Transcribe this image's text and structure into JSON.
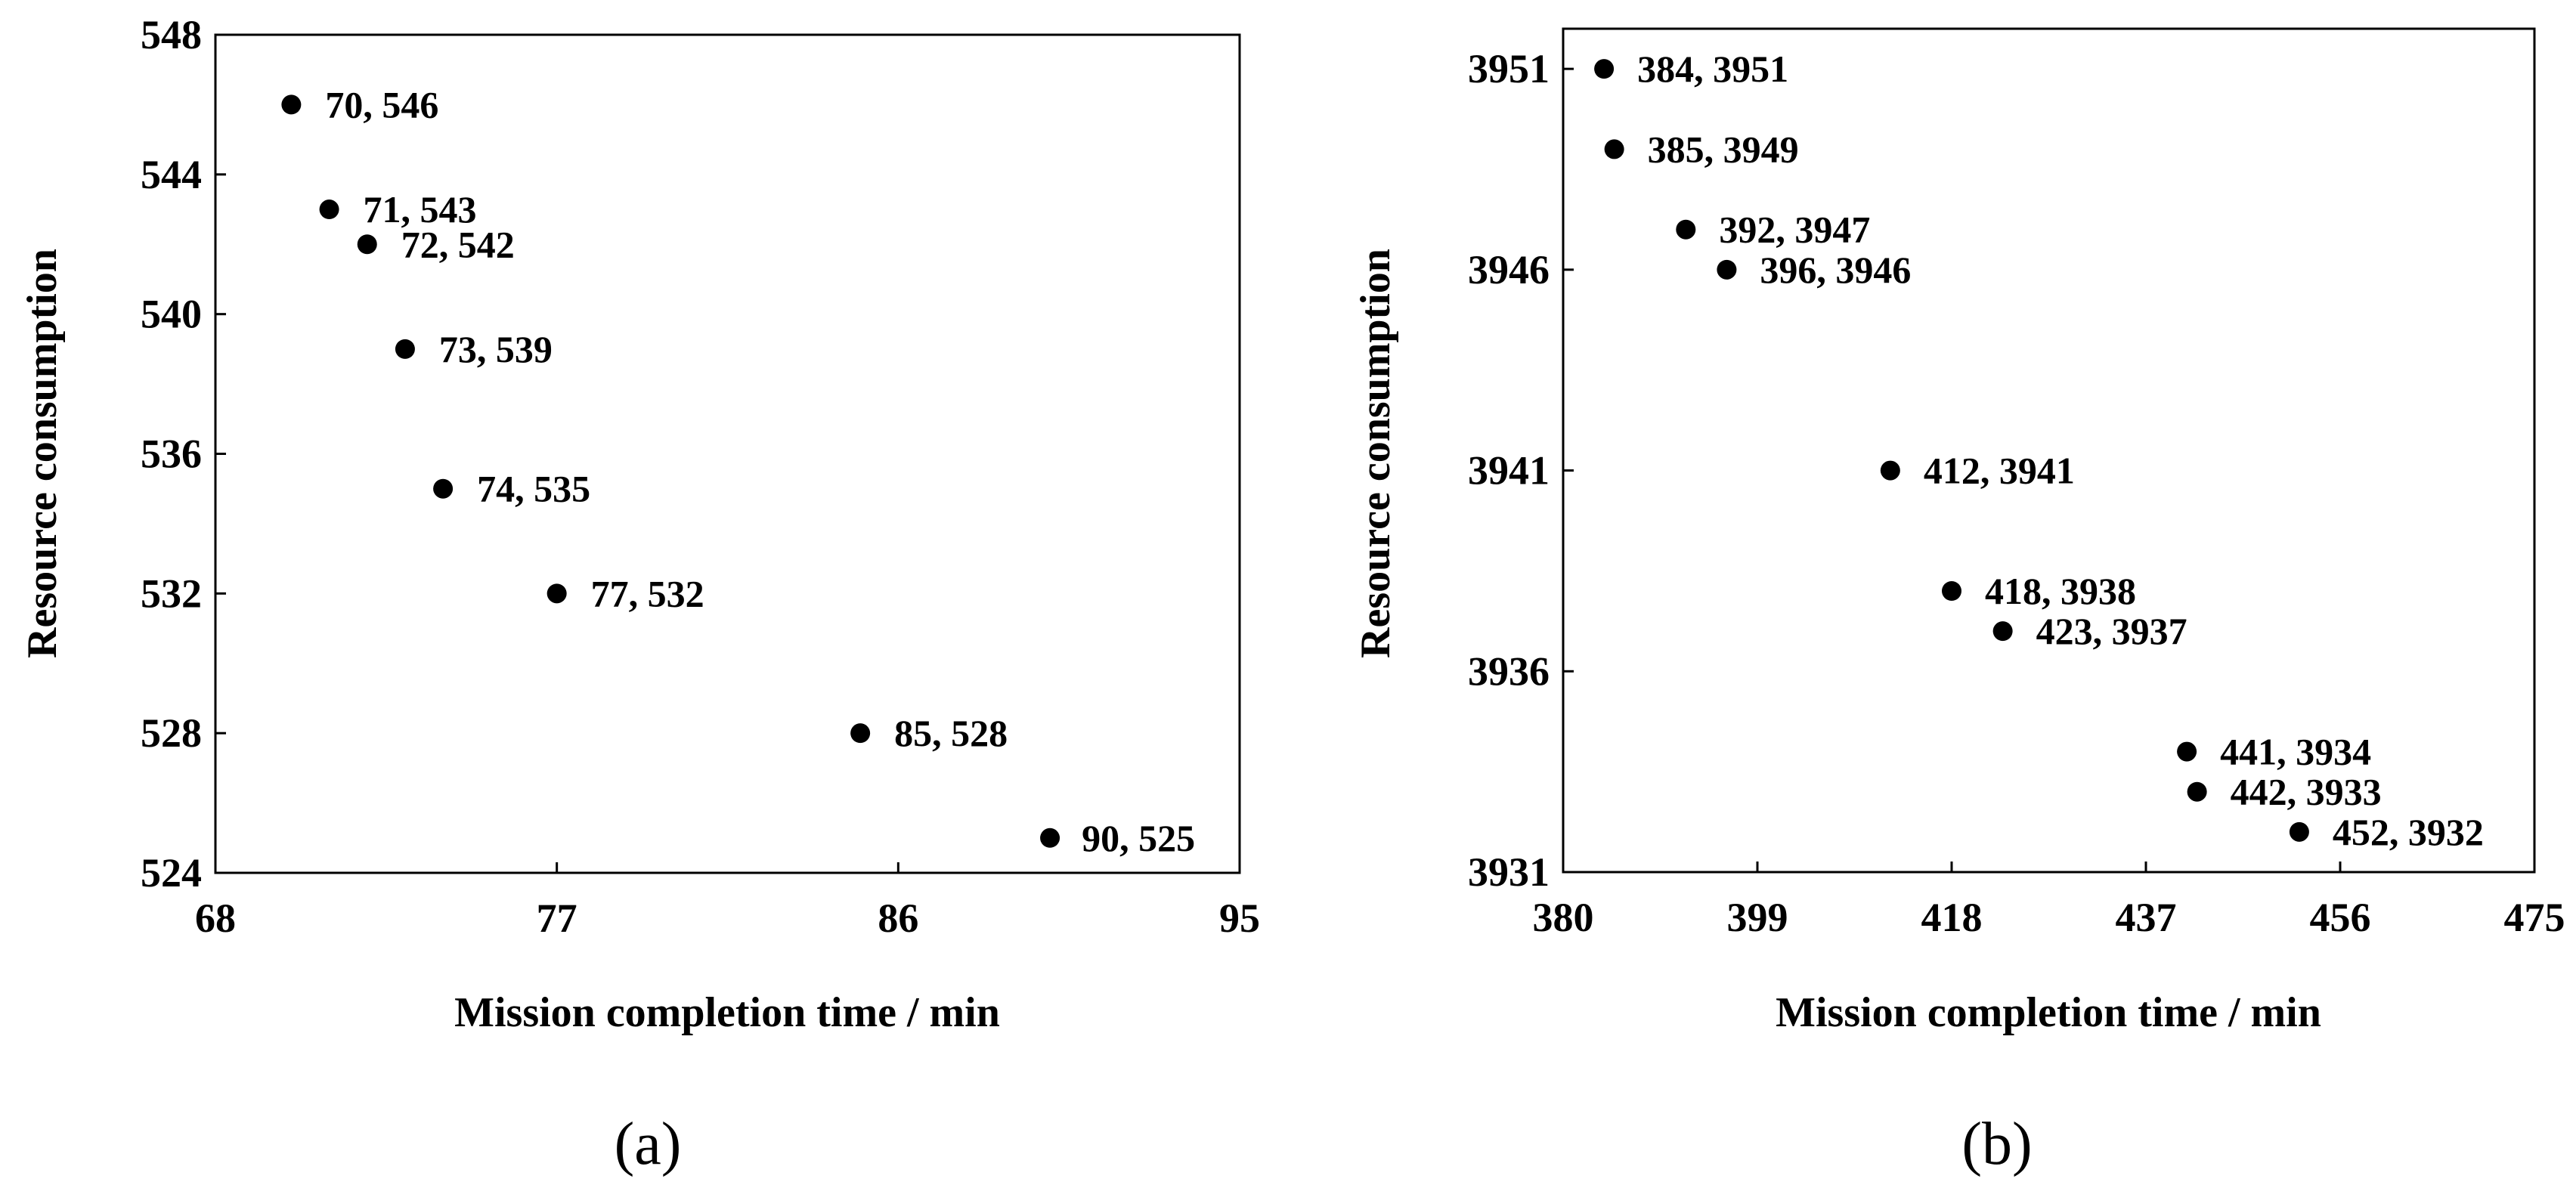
{
  "chart_data": [
    {
      "type": "scatter",
      "panel_label": "(a)",
      "title": "",
      "xlabel": "Mission completion time / min",
      "ylabel": "Resource consumption",
      "xlim": [
        68,
        95
      ],
      "ylim": [
        524,
        548
      ],
      "xticks": [
        68,
        77,
        86,
        95
      ],
      "yticks": [
        524,
        528,
        532,
        536,
        540,
        544,
        548
      ],
      "grid": false,
      "marker_color": "#000000",
      "points": [
        {
          "x": 70,
          "y": 546,
          "label": "70, 546"
        },
        {
          "x": 71,
          "y": 543,
          "label": "71, 543"
        },
        {
          "x": 72,
          "y": 542,
          "label": "72, 542"
        },
        {
          "x": 73,
          "y": 539,
          "label": "73, 539"
        },
        {
          "x": 74,
          "y": 535,
          "label": "74, 535"
        },
        {
          "x": 77,
          "y": 532,
          "label": "77, 532"
        },
        {
          "x": 85,
          "y": 528,
          "label": "85, 528"
        },
        {
          "x": 90,
          "y": 525,
          "label": "90, 525"
        }
      ]
    },
    {
      "type": "scatter",
      "panel_label": "(b)",
      "title": "",
      "xlabel": "Mission completion time / min",
      "ylabel": "Resource consumption",
      "xlim": [
        380,
        475
      ],
      "ylim": [
        3931,
        3952
      ],
      "xticks": [
        380,
        399,
        418,
        437,
        456,
        475
      ],
      "yticks": [
        3931,
        3936,
        3941,
        3946,
        3951
      ],
      "grid": false,
      "marker_color": "#000000",
      "points": [
        {
          "x": 384,
          "y": 3951,
          "label": "384, 3951"
        },
        {
          "x": 385,
          "y": 3949,
          "label": "385, 3949"
        },
        {
          "x": 392,
          "y": 3947,
          "label": "392, 3947"
        },
        {
          "x": 396,
          "y": 3946,
          "label": "396, 3946"
        },
        {
          "x": 412,
          "y": 3941,
          "label": "412, 3941"
        },
        {
          "x": 418,
          "y": 3938,
          "label": "418, 3938"
        },
        {
          "x": 423,
          "y": 3937,
          "label": "423, 3937"
        },
        {
          "x": 441,
          "y": 3934,
          "label": "441, 3934"
        },
        {
          "x": 442,
          "y": 3933,
          "label": "442, 3933"
        },
        {
          "x": 452,
          "y": 3932,
          "label": "452, 3932"
        }
      ]
    }
  ]
}
